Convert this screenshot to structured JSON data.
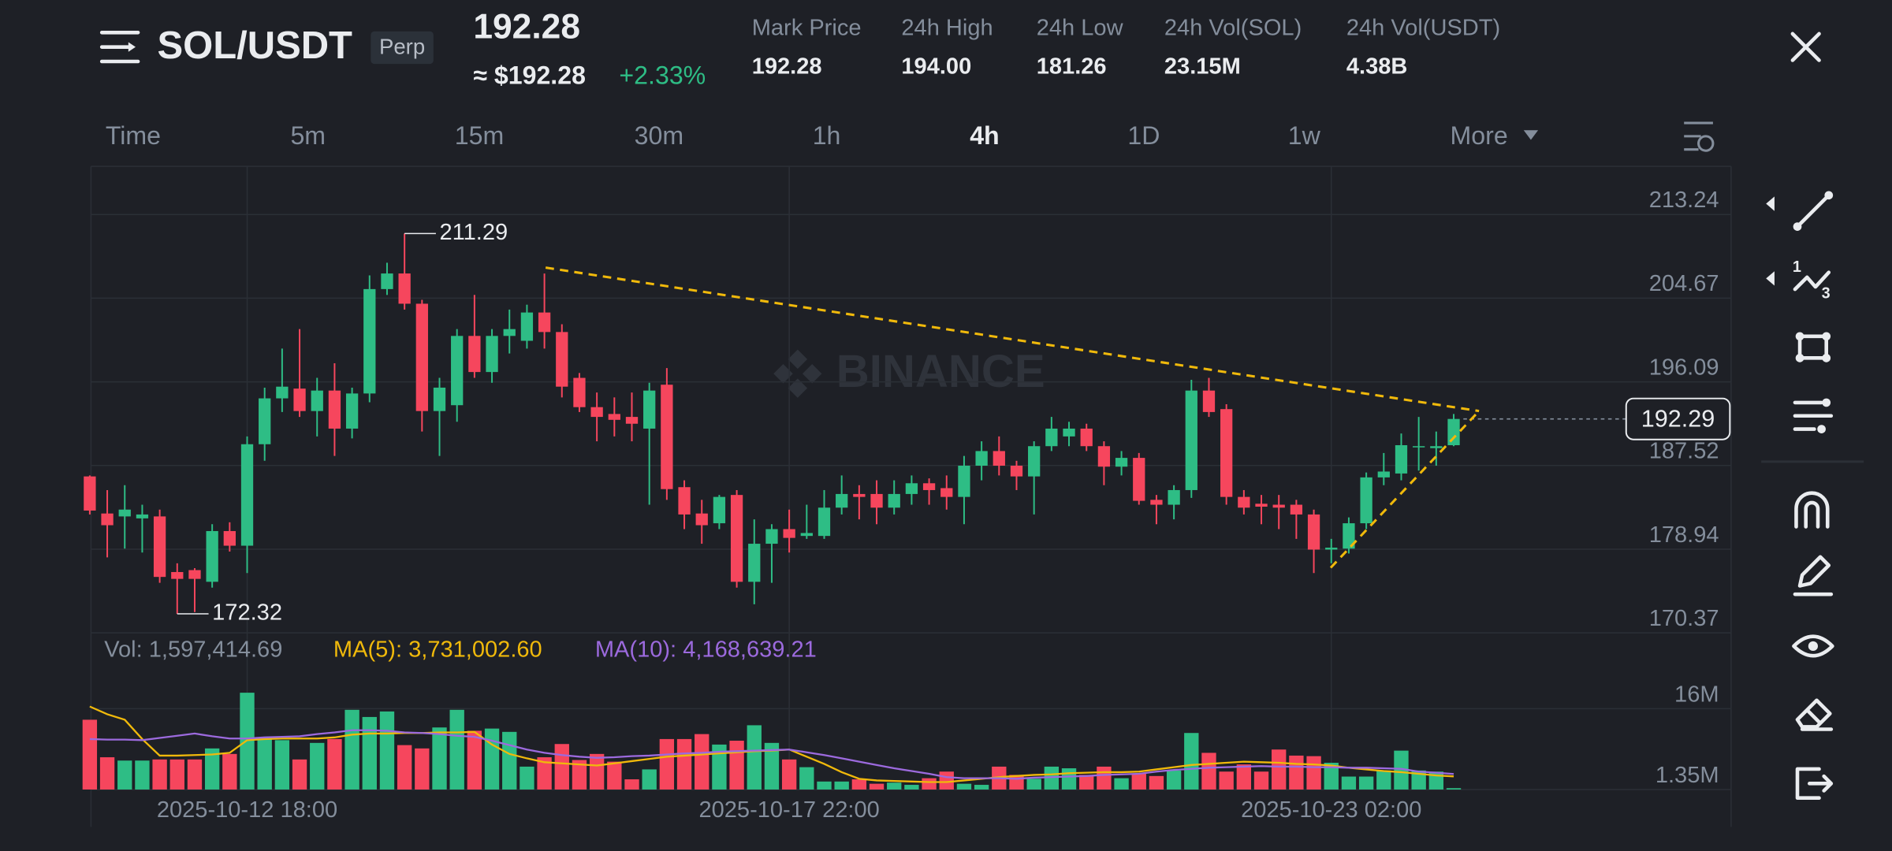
{
  "header": {
    "pair": "SOL/USDT",
    "badge": "Perp",
    "last_price": "192.28",
    "usd_price": "≈ $192.28",
    "change": "+2.33%",
    "stats": [
      {
        "label": "Mark Price",
        "value": "192.28"
      },
      {
        "label": "24h High",
        "value": "194.00"
      },
      {
        "label": "24h Low",
        "value": "181.26"
      },
      {
        "label": "24h Vol(SOL)",
        "value": "23.15M"
      },
      {
        "label": "24h Vol(USDT)",
        "value": "4.38B"
      }
    ]
  },
  "intervals": [
    "Time",
    "5m",
    "15m",
    "30m",
    "1h",
    "4h",
    "1D",
    "1w",
    "More"
  ],
  "active_interval": "4h",
  "watermark": "BINANCE",
  "chart_data": {
    "type": "candlestick",
    "up_color": "#2ebd85",
    "down_color": "#f6465d",
    "grid": true,
    "categories": [
      null,
      null,
      null,
      null,
      null,
      null,
      null,
      null,
      null,
      "2025-10-12 18:00",
      null,
      null,
      null,
      null,
      null,
      null,
      null,
      null,
      null,
      null,
      null,
      null,
      null,
      null,
      null,
      null,
      null,
      null,
      null,
      null,
      null,
      null,
      null,
      null,
      null,
      null,
      null,
      null,
      null,
      null,
      "2025-10-17 22:00",
      null,
      null,
      null,
      null,
      null,
      null,
      null,
      null,
      null,
      null,
      null,
      null,
      null,
      null,
      null,
      null,
      null,
      null,
      null,
      null,
      null,
      null,
      null,
      null,
      null,
      null,
      null,
      null,
      null,
      null,
      "2025-10-23 02:00",
      null,
      null,
      null,
      null,
      null,
      null,
      null
    ],
    "open": [
      186.4,
      182.6,
      182.3,
      182.1,
      182.3,
      176.6,
      176.8,
      175.6,
      180.8,
      179.3,
      189.7,
      194.4,
      195.4,
      193.1,
      195.2,
      191.3,
      194.9,
      205.6,
      207.2,
      204.1,
      193.1,
      193.7,
      200.8,
      197.1,
      200.8,
      200.3,
      203.2,
      201.2,
      196.5,
      193.5,
      192.8,
      192.5,
      191.3,
      195.8,
      185.3,
      182.6,
      181.6,
      184.5,
      175.6,
      179.5,
      181,
      180.3,
      180.3,
      183.2,
      184.6,
      184.6,
      183.2,
      184.6,
      185.7,
      185.2,
      184.3,
      187.5,
      189,
      187.5,
      186.4,
      189.5,
      190.5,
      191.3,
      189.5,
      187.4,
      188.3,
      184,
      183.5,
      185,
      195.2,
      193.3,
      184.3,
      183.6,
      183.5,
      183.5,
      182.5,
      178.9,
      179,
      181.6,
      186.3,
      186.7,
      189.4,
      189.3,
      189.6
    ],
    "close": [
      182.9,
      181.4,
      183.0,
      182.5,
      176.1,
      175.9,
      175.9,
      180.8,
      179.3,
      189.7,
      194.4,
      195.6,
      193.1,
      195.2,
      191.3,
      194.9,
      205.6,
      207.2,
      204.1,
      193.1,
      195.5,
      200.8,
      197.1,
      200.8,
      201.5,
      203.2,
      201.2,
      195.6,
      193.5,
      192.5,
      192.2,
      191.8,
      195.2,
      185.1,
      182.5,
      181.4,
      184.3,
      175.6,
      179.5,
      181,
      180.1,
      180.6,
      183.2,
      184.6,
      184.3,
      183.2,
      184.6,
      185.7,
      185,
      184.3,
      187.5,
      189,
      187.5,
      186.4,
      189.5,
      191.3,
      191.3,
      189.5,
      187.4,
      188.3,
      183.9,
      183.5,
      185,
      195.2,
      193,
      184.3,
      183.2,
      183.3,
      183.2,
      182.5,
      178.9,
      179.1,
      181.6,
      186.3,
      186.9,
      189.6,
      189.5,
      189.5,
      192.29
    ],
    "high": [
      186.5,
      185,
      185.5,
      183.5,
      183,
      177.5,
      177.0,
      181.5,
      181.7,
      190.5,
      195.5,
      199.5,
      201.5,
      196.5,
      198,
      195.5,
      207,
      208.3,
      211.29,
      204.5,
      196.5,
      201.5,
      205,
      201.5,
      203.5,
      204,
      207.2,
      202,
      197,
      195,
      194.5,
      195,
      196,
      197.5,
      186,
      184,
      184.5,
      185,
      182,
      181.5,
      183,
      183.5,
      185,
      186.5,
      185.5,
      186,
      186,
      186.5,
      186.2,
      186.5,
      188.5,
      190,
      190.5,
      188,
      190,
      192.5,
      192,
      191.8,
      190,
      189,
      188.8,
      184.5,
      185.5,
      196.3,
      196.5,
      193.8,
      185,
      184.5,
      184.5,
      184,
      183,
      180,
      182.2,
      186.8,
      188.8,
      190.8,
      192.5,
      191,
      192.8
    ],
    "low": [
      182.5,
      178.1,
      179.0,
      178.6,
      175.5,
      172.32,
      172.5,
      175.0,
      178.7,
      176.5,
      188,
      193,
      192.5,
      190.5,
      188.5,
      190.3,
      194,
      205,
      203.5,
      191,
      188.5,
      192,
      196.5,
      196,
      199,
      199.5,
      199.5,
      194.5,
      193,
      190,
      190.5,
      190,
      183.5,
      184,
      181,
      179.5,
      181,
      175,
      173.3,
      175.5,
      178.6,
      180,
      180,
      182.5,
      182,
      181.5,
      182.5,
      183.5,
      183.5,
      183,
      181.5,
      186,
      186.5,
      185,
      182.5,
      189,
      189.5,
      189,
      185.5,
      186.5,
      183.5,
      181.5,
      182,
      184.2,
      192.5,
      183.5,
      182.5,
      181.5,
      181,
      180,
      176.5,
      177.5,
      178.5,
      181,
      185.5,
      186,
      187,
      187.5,
      189.5
    ],
    "ylim": [
      170.37,
      218.18
    ],
    "yticks": [
      213.24,
      204.67,
      196.09,
      187.52,
      178.94,
      170.37
    ],
    "high_marker": 211.29,
    "low_marker": 172.32,
    "last_price": 192.29,
    "trend_color": "#f0b90b",
    "volume": {
      "legend": "Vol: 1,597,414.69",
      "ma5_label": "MA(5): 3,731,002.60",
      "ma10_label": "MA(10): 4,168,639.21",
      "ma5_color": "#f0b90b",
      "ma10_color": "#9c6ade",
      "ylim": [
        1.35,
        23.2
      ],
      "yticks": [
        {
          "value": 16,
          "label": "16M"
        },
        {
          "value": 1.35,
          "label": "1.35M"
        }
      ],
      "values": [
        14,
        7.2,
        6.6,
        6.6,
        6.8,
        6.8,
        6.8,
        8.8,
        7.8,
        18.9,
        10.7,
        10.3,
        6.8,
        9.8,
        10.5,
        15.8,
        14.5,
        15.5,
        9.4,
        8.8,
        12.6,
        15.8,
        12,
        12.4,
        11.8,
        5.5,
        7.2,
        9.6,
        6.7,
        7.8,
        6.4,
        3.2,
        5,
        10.5,
        10.5,
        11.4,
        9.5,
        10.2,
        13,
        9.8,
        6.8,
        5.4,
        2.8,
        2.8,
        3.2,
        2.4,
        2.6,
        2.2,
        3.4,
        4.6,
        2.4,
        2.2,
        5.5,
        4,
        3.3,
        5.5,
        5.2,
        4,
        5.5,
        3.4,
        4.2,
        3.8,
        4.8,
        11.6,
        8,
        4.6,
        5.9,
        4.6,
        8.6,
        7.5,
        7.4,
        6.2,
        3.7,
        3.7,
        4.8,
        8.4,
        4.8,
        4.6,
        1.6
      ],
      "ma5": [
        16.4,
        15,
        14,
        10.5,
        7.5,
        7.5,
        7.6,
        7.7,
        8,
        10.3,
        10.5,
        10.6,
        10.6,
        10.6,
        10.8,
        11.3,
        11.5,
        11.5,
        11.6,
        11.6,
        11.7,
        11.7,
        11.8,
        9.5,
        7.8,
        7,
        6.3,
        6.1,
        5.9,
        5.7,
        6.1,
        6.5,
        6.9,
        7.3,
        7.5,
        7.7,
        7.9,
        8.1,
        8.3,
        8.4,
        8.6,
        7.3,
        6,
        4.5,
        3.3,
        3,
        2.9,
        2.8,
        2.7,
        2.7,
        3,
        3.3,
        3.6,
        3.8,
        4,
        4.1,
        4.3,
        4.4,
        4.5,
        4.5,
        4.6,
        5,
        5.4,
        5.8,
        6,
        6.2,
        6.4,
        6.3,
        6.2,
        6,
        5.9,
        5.7,
        5.3,
        5,
        4.7,
        4.5,
        4.2,
        3.9,
        3.73
      ],
      "ma10": [
        10.5,
        10.4,
        10.4,
        10.3,
        10.7,
        11.1,
        11.5,
        11,
        10.6,
        10.6,
        10.8,
        10.9,
        11,
        11.4,
        11.7,
        12.1,
        12.1,
        12,
        11.7,
        11.6,
        11.4,
        11.1,
        10.9,
        10.2,
        9.4,
        8.6,
        8,
        7.6,
        7.3,
        7.1,
        7.2,
        7.4,
        7.5,
        7.7,
        7.9,
        8,
        8.2,
        8.3,
        8.4,
        8.5,
        8.6,
        8.1,
        7.6,
        7,
        6.4,
        5.8,
        5.2,
        4.7,
        4.2,
        3.6,
        3.4,
        3.4,
        3.4,
        3.3,
        3.5,
        3.6,
        3.7,
        3.8,
        4,
        4.1,
        4.2,
        4.6,
        4.9,
        5.1,
        5.3,
        5.4,
        5.5,
        5.6,
        5.5,
        5.5,
        5.4,
        5.4,
        5.3,
        5.3,
        5.2,
        5.1,
        4.6,
        4.4,
        4.17
      ]
    }
  }
}
